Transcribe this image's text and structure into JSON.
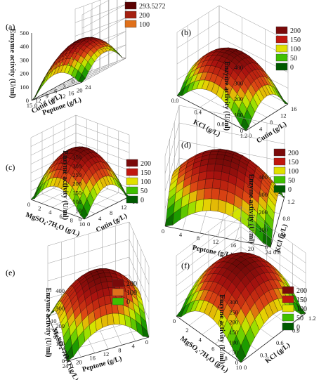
{
  "chart_data": [
    {
      "panel": "(a)",
      "type": "surface",
      "zlabel": "Enzyme activity (U/ml)",
      "xlabel": "Cutin (g/L)",
      "ylabel": "Peptone (g/L)",
      "z_ticks": [
        "500",
        "400",
        "300",
        "200",
        "100",
        "0"
      ],
      "x_ticks": [
        "15",
        "12",
        "9",
        "6",
        "3",
        "0"
      ],
      "y_ticks": [
        "0",
        "4",
        "8",
        "12",
        "16",
        "20",
        "24"
      ],
      "legend": [
        "293.5272",
        "200",
        "100"
      ],
      "legend_colors": [
        "#5a0000",
        "#a52010",
        "#e0701a"
      ],
      "zlim": [
        0,
        500
      ],
      "peak": 293.5272
    },
    {
      "panel": "(b)",
      "type": "surface",
      "zlabel": "Enzyme activity (U/ml)",
      "xlabel": "KCl (g/L)",
      "ylabel": "Cutin (g/L)",
      "z_ticks": [
        "400",
        "300",
        "200",
        "100",
        "0"
      ],
      "x_ticks": [
        "1.2",
        "0.8",
        "0.4",
        "0.0"
      ],
      "y_ticks": [
        "0",
        "4",
        "8",
        "12",
        "16"
      ],
      "legend": [
        "200",
        "150",
        "100",
        "50",
        "0"
      ],
      "legend_colors": [
        "#7a0a0a",
        "#c0180f",
        "#e0e000",
        "#40c000",
        "#005a00"
      ],
      "zlim": [
        0,
        400
      ],
      "peak": 300
    },
    {
      "panel": "(c)",
      "type": "surface",
      "zlabel": "Enzyme activity (U/ml)",
      "xlabel": "MgSO₄·7H₂O (g/L)",
      "ylabel": "Cutin (g/L)",
      "z_ticks": [
        "350",
        "300",
        "250",
        "200",
        "150",
        "100",
        "50",
        "0"
      ],
      "x_ticks": [
        "10",
        "8",
        "6",
        "4",
        "2",
        "0"
      ],
      "y_ticks": [
        "0",
        "4",
        "8",
        "12",
        "16"
      ],
      "legend": [
        "200",
        "150",
        "100",
        "50",
        "0"
      ],
      "legend_colors": [
        "#7a0a0a",
        "#c0180f",
        "#e0e000",
        "#40c000",
        "#005a00"
      ],
      "zlim": [
        0,
        350
      ],
      "peak": 280
    },
    {
      "panel": "(d)",
      "type": "surface",
      "zlabel": "Enzyme activity (U/ml)",
      "xlabel": "Peptone (g/L)",
      "ylabel": "KCl (g/L)",
      "z_ticks": [
        "400",
        "300",
        "200",
        "100",
        "0"
      ],
      "x_ticks": [
        "24",
        "20",
        "16",
        "12",
        "8",
        "4",
        "0"
      ],
      "y_ticks": [
        "0.0",
        "0.4",
        "0.8",
        "1.2"
      ],
      "legend": [
        "200",
        "150",
        "100",
        "50",
        "0"
      ],
      "legend_colors": [
        "#7a0a0a",
        "#c0180f",
        "#e0e000",
        "#40c000",
        "#005a00"
      ],
      "zlim": [
        0,
        400
      ],
      "peak": 320
    },
    {
      "panel": "(e)",
      "type": "surface",
      "zlabel": "Enzyme activity (U/ml)",
      "xlabel": "Peptone (g/L)",
      "ylabel": "MgSO₄·7H₂O (g/L)",
      "z_ticks": [
        "400",
        "300",
        "200",
        "100",
        "0"
      ],
      "x_ticks": [
        "24",
        "20",
        "16",
        "12",
        "8",
        "4",
        "0"
      ],
      "y_ticks": [
        "0",
        "2",
        "4",
        "6",
        "8",
        "10"
      ],
      "legend": [
        "200",
        "100",
        "0"
      ],
      "legend_colors": [
        "#7a0a0a",
        "#e0701a",
        "#40c000"
      ],
      "zlim": [
        0,
        400
      ],
      "peak": 300
    },
    {
      "panel": "(f)",
      "type": "surface",
      "zlabel": "Enzyme activity (U/ml)",
      "xlabel": "MgSO₄·7H₂O (g/L)",
      "ylabel": "KCl (g/L)",
      "z_ticks": [
        "300",
        "250",
        "200",
        "150",
        "100",
        "50",
        "0"
      ],
      "x_ticks": [
        "10",
        "8",
        "6",
        "4",
        "2",
        "0"
      ],
      "y_ticks": [
        "0",
        "0.3",
        "0.6",
        "0.9",
        "1.2"
      ],
      "legend": [
        "200",
        "150",
        "100",
        "50",
        "0"
      ],
      "legend_colors": [
        "#7a0a0a",
        "#c0180f",
        "#e0e000",
        "#40c000",
        "#005a00"
      ],
      "zlim": [
        0,
        300
      ],
      "peak": 260
    }
  ]
}
